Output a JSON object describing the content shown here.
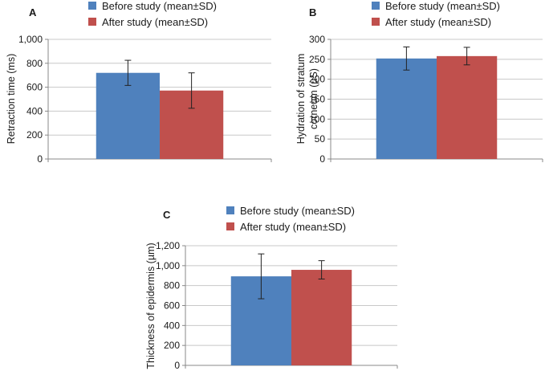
{
  "chart_data": [
    {
      "type": "bar",
      "panel": "A",
      "title": "",
      "xlabel": "",
      "ylabel": "Retraction time (ms)",
      "ylim": [
        0,
        1000
      ],
      "ticks": [
        0,
        200,
        400,
        600,
        800,
        1000
      ],
      "tick_labels": [
        "0",
        "200",
        "400",
        "600",
        "800",
        "1,000"
      ],
      "legend": "top",
      "series": [
        {
          "name": "Before study (mean±SD)",
          "value": 720,
          "err": 105,
          "color": "#4f81bd"
        },
        {
          "name": "After study (mean±SD)",
          "value": 572,
          "err": 148,
          "color": "#c0504d"
        }
      ]
    },
    {
      "type": "bar",
      "panel": "B",
      "title": "",
      "xlabel": "",
      "ylabel": [
        "Hydration of stratum",
        "corneum (µS)"
      ],
      "ylim": [
        0,
        300
      ],
      "ticks": [
        0,
        50,
        100,
        150,
        200,
        250,
        300
      ],
      "tick_labels": [
        "0",
        "50",
        "100",
        "150",
        "200",
        "250",
        "300"
      ],
      "legend": "top",
      "series": [
        {
          "name": "Before study (mean±SD)",
          "value": 252,
          "err": 29,
          "color": "#4f81bd"
        },
        {
          "name": "After study (mean±SD)",
          "value": 258,
          "err": 22,
          "color": "#c0504d"
        }
      ]
    },
    {
      "type": "bar",
      "panel": "C",
      "title": "",
      "xlabel": "",
      "ylabel": "Thickness of epidermis (µm)",
      "ylim": [
        0,
        1200
      ],
      "ticks": [
        0,
        200,
        400,
        600,
        800,
        1000,
        1200
      ],
      "tick_labels": [
        "0",
        "200",
        "400",
        "600",
        "800",
        "1,000",
        "1,200"
      ],
      "legend": "top",
      "series": [
        {
          "name": "Before study (mean±SD)",
          "value": 893,
          "err": 225,
          "color": "#4f81bd"
        },
        {
          "name": "After study (mean±SD)",
          "value": 958,
          "err": 92,
          "color": "#c0504d"
        }
      ]
    }
  ]
}
